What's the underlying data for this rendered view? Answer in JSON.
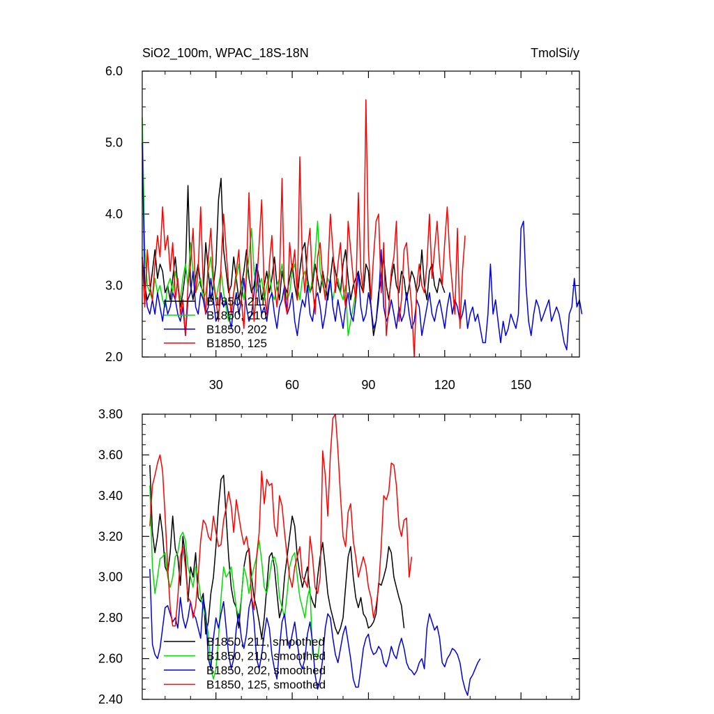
{
  "chart_data": [
    {
      "type": "line",
      "title_left": "SiO2_100m, WPAC_18S-18N",
      "title_right": "TmolSi/y",
      "xlabel": "",
      "ylabel": "",
      "xlim": [
        1,
        173
      ],
      "ylim": [
        2.0,
        6.0
      ],
      "x_tick_labels": [
        "30",
        "60",
        "90",
        "120",
        "150"
      ],
      "x_ticks": [
        30,
        60,
        90,
        120,
        150
      ],
      "y_tick_labels": [
        "2.0",
        "3.0",
        "4.0",
        "5.0",
        "6.0"
      ],
      "y_ticks": [
        2.0,
        3.0,
        4.0,
        5.0,
        6.0
      ],
      "legend_position": "bottom-left",
      "series": [
        {
          "name": "B1850, 211",
          "color": "#000000",
          "x_start": 1,
          "values": [
            3.4,
            3.0,
            2.8,
            2.9,
            3.2,
            3.5,
            3.1,
            3.3,
            3.2,
            2.9,
            3.0,
            2.8,
            3.1,
            3.4,
            3.0,
            2.7,
            2.9,
            3.2,
            4.4,
            3.0,
            2.8,
            3.1,
            3.3,
            3.0,
            2.9,
            3.6,
            3.2,
            2.8,
            3.0,
            3.3,
            4.2,
            4.5,
            3.5,
            3.2,
            2.9,
            3.0,
            3.4,
            3.1,
            2.8,
            3.0,
            3.2,
            3.5,
            3.1,
            2.9,
            3.0,
            3.3,
            3.1,
            2.8,
            3.0,
            3.2,
            2.9,
            3.1,
            3.4,
            3.0,
            2.8,
            3.2,
            3.0,
            2.9,
            3.1,
            3.3,
            3.0,
            2.8,
            3.2,
            3.5,
            3.6,
            3.1,
            2.9,
            3.0,
            3.3,
            3.1,
            2.9,
            3.2,
            3.0,
            2.8,
            3.1,
            3.4,
            3.2,
            3.0,
            2.9,
            3.3,
            3.5,
            3.1,
            2.8,
            3.0,
            3.1,
            3.2,
            3.0,
            2.9,
            3.3,
            3.2,
            2.7,
            2.3,
            2.5,
            2.9,
            3.1,
            3.4,
            3.0,
            2.8,
            3.1,
            3.3,
            3.0,
            2.9,
            3.2,
            3.1,
            2.8,
            3.0,
            3.2,
            3.1,
            2.9,
            3.0,
            3.5,
            3.0,
            2.8,
            3.2,
            3.3,
            3.0,
            2.9,
            3.1,
            3.0,
            2.9
          ]
        },
        {
          "name": "B1850, 210",
          "color": "#00dd00",
          "x_start": 1,
          "values": [
            5.35,
            3.5,
            3.0,
            2.9,
            2.8,
            3.1,
            2.9,
            3.0,
            2.8,
            2.7,
            3.0,
            3.1,
            2.9,
            3.2,
            3.0,
            2.8,
            3.1,
            3.3,
            3.0,
            3.6,
            3.2,
            2.9,
            3.0,
            3.1,
            2.8,
            2.9,
            3.2,
            3.4,
            3.0,
            2.8,
            3.0,
            3.2,
            2.9,
            2.7,
            2.5,
            2.6,
            2.9,
            3.1,
            3.3,
            3.0,
            2.8,
            3.1,
            3.4,
            3.8,
            3.2,
            2.9,
            3.0,
            3.1,
            2.8,
            3.0,
            3.2,
            2.9,
            2.8,
            3.0,
            3.1,
            3.3,
            3.0,
            2.8,
            2.9,
            3.2,
            3.3,
            3.0,
            2.8,
            3.1,
            3.2,
            3.0,
            2.9,
            3.1,
            3.4,
            3.9,
            3.2,
            3.0,
            2.9,
            3.1,
            3.0,
            2.8,
            3.0,
            3.1,
            2.9,
            2.8,
            3.0,
            2.3,
            2.5,
            2.7,
            2.9
          ]
        },
        {
          "name": "B1850, 202",
          "color": "#0000dd",
          "x_start": 1,
          "values": [
            5.0,
            3.0,
            2.7,
            2.6,
            2.8,
            2.6,
            2.9,
            2.7,
            2.5,
            2.8,
            2.6,
            2.7,
            2.9,
            2.8,
            2.6,
            2.5,
            2.7,
            2.3,
            2.8,
            2.9,
            3.2,
            2.7,
            2.6,
            2.9,
            2.8,
            2.6,
            2.7,
            3.1,
            2.8,
            2.5,
            2.6,
            2.9,
            2.7,
            2.8,
            2.6,
            2.4,
            2.7,
            2.9,
            2.6,
            2.8,
            3.1,
            2.7,
            2.5,
            2.6,
            2.9,
            3.3,
            2.8,
            2.6,
            2.7,
            2.5,
            2.8,
            2.9,
            2.6,
            2.4,
            2.7,
            2.8,
            3.0,
            2.6,
            2.7,
            2.9,
            2.5,
            2.3,
            2.6,
            2.8,
            2.7,
            3.0,
            2.6,
            2.5,
            2.8,
            2.9,
            2.7,
            2.4,
            2.6,
            2.9,
            3.1,
            2.7,
            2.5,
            2.8,
            2.6,
            2.4,
            2.7,
            2.9,
            2.6,
            2.5,
            2.8,
            3.2,
            2.7,
            2.5,
            2.6,
            2.9,
            2.7,
            2.4,
            2.5,
            2.8,
            3.5,
            2.7,
            2.5,
            2.6,
            2.8,
            2.6,
            2.4,
            2.7,
            2.5,
            2.6,
            2.9,
            2.6,
            2.4,
            2.5,
            2.8,
            2.7,
            2.3,
            2.5,
            2.7,
            2.9,
            2.6,
            2.5,
            2.7,
            2.8,
            2.6,
            2.4,
            2.7,
            2.9,
            2.6,
            2.8,
            2.7,
            2.5,
            2.6,
            2.8,
            2.4,
            2.6,
            2.7,
            2.5,
            2.6,
            2.4,
            2.2,
            2.2,
            2.6,
            3.3,
            2.6,
            2.8,
            2.5,
            2.2,
            2.5,
            2.3,
            2.4,
            2.6,
            2.5,
            2.4,
            2.6,
            3.8,
            3.9,
            3.0,
            2.5,
            2.3,
            2.6,
            2.8,
            2.7,
            2.5,
            2.6,
            2.7,
            2.8,
            2.5,
            2.6,
            2.7,
            2.6,
            2.4,
            2.2,
            2.1,
            2.6,
            2.7,
            3.1,
            2.7,
            2.8,
            2.6
          ]
        },
        {
          "name": "B1850, 125",
          "color": "#ff0000",
          "x_start": 1,
          "values": [
            3.4,
            2.7,
            3.5,
            3.0,
            2.8,
            3.3,
            3.7,
            3.4,
            4.1,
            3.5,
            3.7,
            3.2,
            3.6,
            2.8,
            3.1,
            2.6,
            2.8,
            2.3,
            3.0,
            3.3,
            3.8,
            2.9,
            3.2,
            4.1,
            3.0,
            2.6,
            3.4,
            3.8,
            3.1,
            2.8,
            2.5,
            3.3,
            4.0,
            3.5,
            3.0,
            2.6,
            2.9,
            3.2,
            3.5,
            2.8,
            2.4,
            3.2,
            4.3,
            3.1,
            2.5,
            3.0,
            3.6,
            4.2,
            2.9,
            2.6,
            3.3,
            3.7,
            3.0,
            2.7,
            3.1,
            4.5,
            2.8,
            2.6,
            3.6,
            3.2,
            3.5,
            2.8,
            4.8,
            3.3,
            2.9,
            3.5,
            3.8,
            3.0,
            2.6,
            3.4,
            3.6,
            3.1,
            2.8,
            3.2,
            4.0,
            3.5,
            2.9,
            3.3,
            3.6,
            3.0,
            2.7,
            3.9,
            3.5,
            3.1,
            2.8,
            4.3,
            3.2,
            2.9,
            5.6,
            3.5,
            2.8,
            3.4,
            3.9,
            4.0,
            2.9,
            3.6,
            2.3,
            2.7,
            3.2,
            3.4,
            3.9,
            2.5,
            2.8,
            3.5,
            3.6,
            3.1,
            2.7,
            2.0,
            3.0,
            3.3,
            3.0,
            2.9,
            3.3,
            4.0,
            3.1,
            3.5,
            3.9,
            3.3,
            3.0,
            3.6,
            4.1,
            3.4,
            3.0,
            2.6,
            3.8,
            2.4,
            3.2,
            3.7
          ]
        }
      ]
    },
    {
      "type": "line",
      "xlim": [
        1,
        173
      ],
      "ylim": [
        2.4,
        3.8
      ],
      "x_ticks": [
        30,
        60,
        90,
        120,
        150
      ],
      "y_tick_labels": [
        "2.40",
        "2.60",
        "2.80",
        "3.00",
        "3.20",
        "3.40",
        "3.60",
        "3.80"
      ],
      "y_ticks": [
        2.4,
        2.6,
        2.8,
        3.0,
        3.2,
        3.4,
        3.6,
        3.8
      ],
      "legend_position": "bottom-left",
      "series": [
        {
          "name": "B1850, 211, smoothed",
          "color": "#000000",
          "x_start": 4,
          "values": [
            3.55,
            3.22,
            3.12,
            3.2,
            3.31,
            3.21,
            3.05,
            3.02,
            3.12,
            3.3,
            3.14,
            3.1,
            2.96,
            3.2,
            3.1,
            2.88,
            3.05,
            3.0,
            3.12,
            2.9,
            2.88,
            2.92,
            2.72,
            2.78,
            2.92,
            3.0,
            3.15,
            3.35,
            3.48,
            3.5,
            3.3,
            3.1,
            2.95,
            2.88,
            2.85,
            2.75,
            2.9,
            3.05,
            3.12,
            3.14,
            3.0,
            2.9,
            2.85,
            2.78,
            2.7,
            2.8,
            2.95,
            3.1,
            3.12,
            3.05,
            2.92,
            2.8,
            2.85,
            3.0,
            3.1,
            3.2,
            3.3,
            3.25,
            3.1,
            3.02,
            2.95,
            3.0,
            3.05,
            2.92,
            2.88,
            2.85,
            3.0,
            3.1,
            3.17,
            3.05,
            2.92,
            2.85,
            2.8,
            2.75,
            2.72,
            2.75,
            2.8,
            2.95,
            3.1,
            3.15,
            3.0,
            2.9,
            2.85,
            2.9,
            2.82,
            2.8,
            2.75,
            2.76,
            2.78,
            2.82,
            2.97,
            2.96,
            3.0,
            3.05,
            3.15,
            3.12,
            3.0,
            2.95,
            2.9,
            2.86,
            2.75
          ]
        },
        {
          "name": "B1850, 210, smoothed",
          "color": "#00dd00",
          "x_start": 4,
          "values": [
            3.45,
            3.05,
            2.92,
            3.0,
            3.09,
            3.1,
            3.12,
            3.0,
            2.95,
            3.0,
            3.1,
            3.12,
            3.2,
            3.22,
            3.18,
            3.05,
            3.0,
            2.95,
            3.05,
            3.0,
            2.9,
            2.85,
            2.8,
            2.72,
            2.55,
            2.5,
            2.55,
            2.7,
            2.9,
            3.05,
            3.0,
            3.02,
            3.05,
            2.95,
            2.85,
            2.8,
            2.9,
            3.05,
            3.0,
            2.92,
            3.0,
            3.05,
            3.1,
            3.18,
            3.08,
            2.95,
            2.92,
            3.0,
            3.08,
            3.1,
            3.05,
            2.9,
            2.85,
            2.8,
            2.92,
            3.05,
            3.1,
            3.12,
            3.0,
            2.9,
            2.85,
            2.8,
            2.9,
            2.95,
            2.62,
            2.62,
            2.6,
            2.7
          ]
        },
        {
          "name": "B1850, 202, smoothed",
          "color": "#0000dd",
          "x_start": 4,
          "values": [
            3.04,
            2.67,
            2.62,
            2.6,
            2.65,
            2.75,
            2.85,
            2.86,
            2.82,
            2.78,
            2.8,
            2.75,
            2.9,
            2.8,
            2.75,
            2.8,
            2.88,
            2.82,
            2.8,
            2.75,
            2.7,
            2.9,
            2.82,
            2.6,
            2.55,
            2.7,
            2.8,
            2.75,
            2.82,
            2.88,
            2.75,
            2.62,
            2.55,
            2.6,
            2.75,
            2.82,
            2.7,
            2.65,
            2.72,
            2.85,
            2.9,
            2.78,
            2.6,
            2.55,
            2.62,
            2.72,
            2.8,
            2.75,
            2.62,
            2.55,
            2.5,
            2.65,
            2.78,
            2.82,
            2.7,
            2.65,
            2.72,
            2.78,
            2.68,
            2.58,
            2.55,
            2.6,
            2.72,
            2.78,
            2.68,
            2.52,
            2.45,
            2.5,
            2.6,
            2.75,
            2.82,
            2.8,
            2.7,
            2.62,
            2.58,
            2.65,
            2.72,
            2.76,
            2.68,
            2.6,
            2.5,
            2.46,
            2.46,
            2.55,
            2.65,
            2.7,
            2.72,
            2.65,
            2.62,
            2.63,
            2.66,
            2.64,
            2.58,
            2.56,
            2.6,
            2.66,
            2.62,
            2.6,
            2.66,
            2.7,
            2.65,
            2.58,
            2.55,
            2.54,
            2.52,
            2.54,
            2.58,
            2.6,
            2.55,
            2.75,
            2.82,
            2.78,
            2.74,
            2.76,
            2.7,
            2.58,
            2.56,
            2.6,
            2.62,
            2.65,
            2.64,
            2.62,
            2.58,
            2.5,
            2.45,
            2.42,
            2.5,
            2.52,
            2.55,
            2.58,
            2.6
          ]
        },
        {
          "name": "B1850, 125, smoothed",
          "color": "#ff0000",
          "x_start": 4,
          "values": [
            3.25,
            3.45,
            3.5,
            3.56,
            3.6,
            3.52,
            3.3,
            3.05,
            2.85,
            2.76,
            2.76,
            2.9,
            3.1,
            3.15,
            3.05,
            2.9,
            2.88,
            2.8,
            2.86,
            3.0,
            3.18,
            3.28,
            3.26,
            3.2,
            3.18,
            3.3,
            3.22,
            3.15,
            3.16,
            3.28,
            3.34,
            3.42,
            3.35,
            3.22,
            3.38,
            3.3,
            3.22,
            3.16,
            3.2,
            3.12,
            2.9,
            2.84,
            3.1,
            3.22,
            3.52,
            3.36,
            3.48,
            3.45,
            3.46,
            3.25,
            3.2,
            3.4,
            3.35,
            3.22,
            3.1,
            3.0,
            2.95,
            3.05,
            3.1,
            3.15,
            3.0,
            2.98,
            2.95,
            3.2,
            3.1,
            2.95,
            2.92,
            3.0,
            3.62,
            3.5,
            3.3,
            3.6,
            3.78,
            3.8,
            3.62,
            3.4,
            3.2,
            3.15,
            3.32,
            3.36,
            3.18,
            3.1,
            3.0,
            3.05,
            3.1,
            3.05,
            2.95,
            2.9,
            2.8,
            2.86,
            2.95,
            3.15,
            3.4,
            3.38,
            3.42,
            3.56,
            3.55,
            3.45,
            3.25,
            3.2,
            3.28,
            3.29,
            3.0,
            3.1
          ]
        }
      ]
    }
  ]
}
